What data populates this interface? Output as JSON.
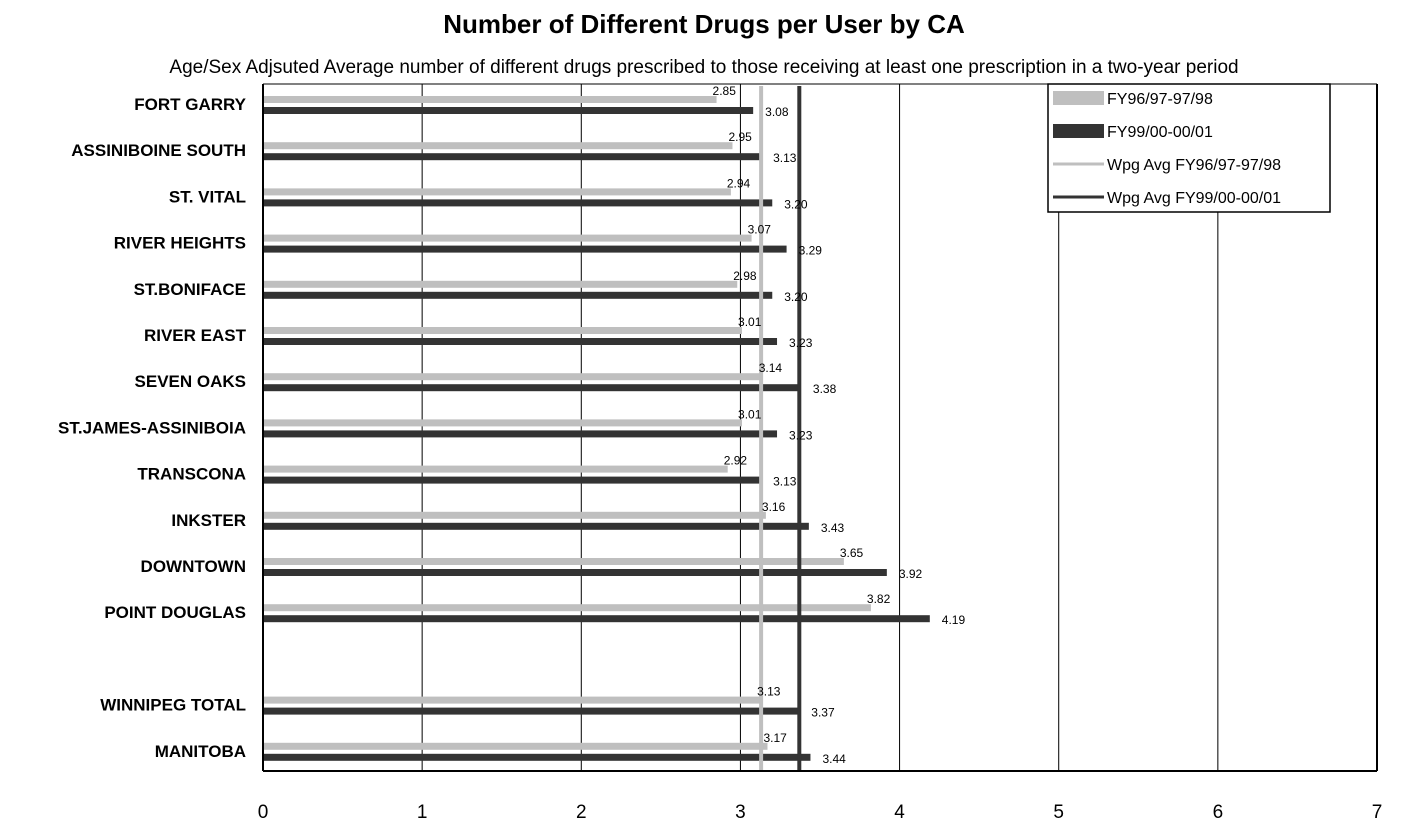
{
  "chart_data": {
    "type": "bar",
    "orientation": "horizontal",
    "title": "Number of Different Drugs per User by CA",
    "subtitle": "Age/Sex Adjsuted Average number of different drugs prescribed to those receiving at least one prescription in a two-year period",
    "xlabel": "",
    "ylabel": "",
    "xlim": [
      0,
      7
    ],
    "xticks": [
      "0",
      "1",
      "2",
      "3",
      "4",
      "5",
      "6",
      "7"
    ],
    "grid": "vertical",
    "legend_position": "top-right",
    "categories": [
      "FORT GARRY",
      "ASSINIBOINE SOUTH",
      "ST. VITAL",
      "RIVER HEIGHTS",
      "ST.BONIFACE",
      "RIVER EAST",
      "SEVEN OAKS",
      "ST.JAMES-ASSINIBOIA",
      "TRANSCONA",
      "INKSTER",
      "DOWNTOWN",
      "POINT DOUGLAS",
      "",
      "WINNIPEG TOTAL",
      "MANITOBA"
    ],
    "series": [
      {
        "name": "FY96/97-97/98",
        "color": "#bfbfbf",
        "values": [
          2.85,
          2.95,
          2.94,
          3.07,
          2.98,
          3.01,
          3.14,
          3.01,
          2.92,
          3.16,
          3.65,
          3.82,
          null,
          3.13,
          3.17
        ],
        "labels": [
          "2.85",
          "2.95",
          "2.94",
          "3.07",
          "2.98",
          "3.01",
          "3.14",
          "3.01",
          "2.92",
          "3.16",
          "3.65",
          "3.82",
          "",
          "3.13",
          "3.17"
        ]
      },
      {
        "name": "FY99/00-00/01",
        "color": "#333333",
        "values": [
          3.08,
          3.13,
          3.2,
          3.29,
          3.2,
          3.23,
          3.38,
          3.23,
          3.13,
          3.43,
          3.92,
          4.19,
          null,
          3.37,
          3.44
        ],
        "labels": [
          "3.08",
          "3.13",
          "3.20",
          "3.29",
          "3.20",
          "3.23",
          "3.38",
          "3.23",
          "3.13",
          "3.43",
          "3.92",
          "4.19",
          "",
          "3.37",
          "3.44"
        ]
      }
    ],
    "reference_lines": [
      {
        "name": "Wpg Avg FY96/97-97/98",
        "value": 3.13,
        "color": "#bfbfbf"
      },
      {
        "name": "Wpg Avg FY99/00-00/01",
        "value": 3.37,
        "color": "#333333"
      }
    ]
  }
}
